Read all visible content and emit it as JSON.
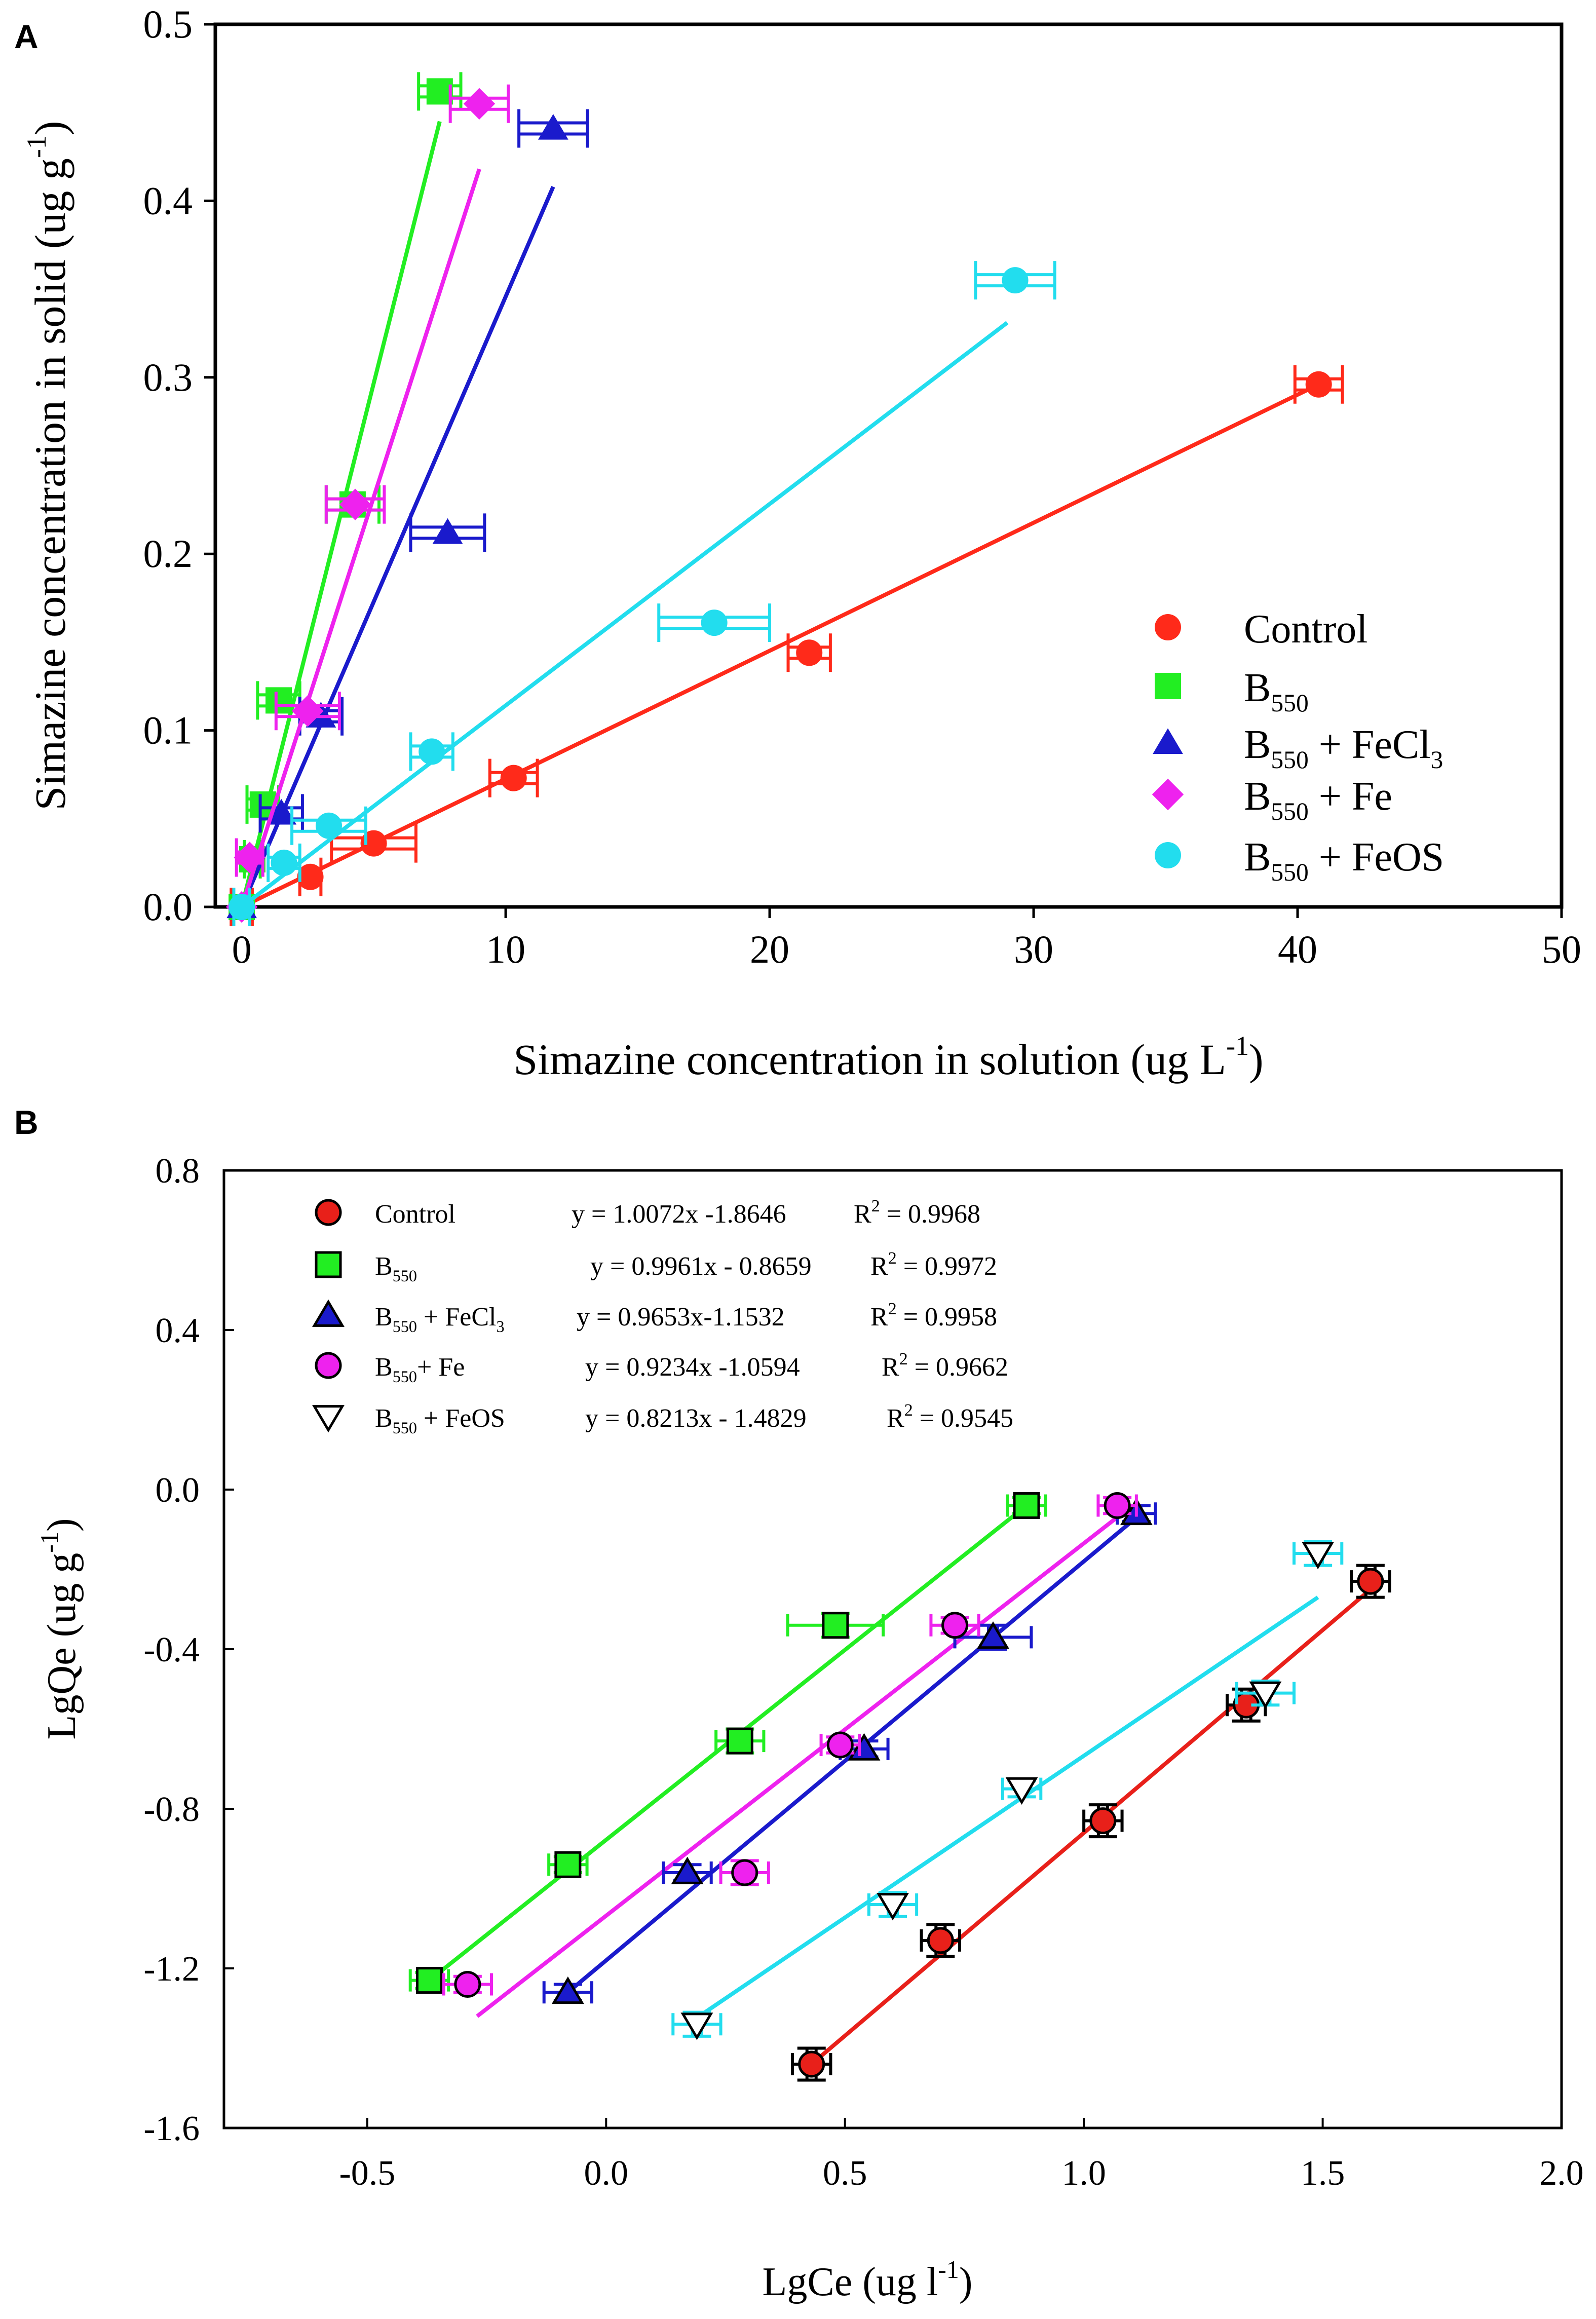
{
  "panels": [
    {
      "panel_label": "A",
      "chart_data": {
        "type": "scatter",
        "xlabel": "Simazine concentration in solution (ug L",
        "xlabel_sup": "-1",
        "xlabel_tail": ")",
        "ylabel": "Simazine concentration in solid (ug g",
        "ylabel_sup": "-1",
        "ylabel_tail": ")",
        "xlim": [
          -1,
          50
        ],
        "ylim": [
          0,
          0.5
        ],
        "xticks": [
          0,
          10,
          20,
          30,
          40,
          50
        ],
        "xtick_labels": [
          "0",
          "10",
          "20",
          "30",
          "40",
          "50"
        ],
        "yticks": [
          0,
          0.1,
          0.2,
          0.3,
          0.4,
          0.5
        ],
        "ytick_labels": [
          "0.0",
          "0.1",
          "0.2",
          "0.3",
          "0.4",
          "0.5"
        ],
        "series": [
          {
            "name": "Control",
            "sub": "",
            "tail": "",
            "sub2": "",
            "color": "#ff2a1a",
            "marker": "circle",
            "points": [
              [
                0,
                0
              ],
              [
                2.6,
                0.017
              ],
              [
                5,
                0.036
              ],
              [
                10.3,
                0.073
              ],
              [
                21.5,
                0.144
              ],
              [
                40.8,
                0.296
              ]
            ],
            "xerr": [
              0.4,
              0.4,
              1.6,
              0.9,
              0.8,
              0.9
            ],
            "line": [
              [
                0,
                0
              ],
              [
                40.8,
                0.296
              ]
            ]
          },
          {
            "name": "B",
            "sub": "550",
            "tail": "",
            "sub2": "",
            "color": "#22ee22",
            "marker": "square",
            "points": [
              [
                0,
                0
              ],
              [
                0.4,
                0.027
              ],
              [
                0.8,
                0.058
              ],
              [
                1.4,
                0.117
              ],
              [
                4.2,
                0.228
              ],
              [
                7.5,
                0.462
              ]
            ],
            "xerr": [
              0.3,
              0.3,
              0.6,
              0.8,
              1.0,
              0.8
            ],
            "line": [
              [
                0,
                0
              ],
              [
                7.5,
                0.445
              ]
            ]
          },
          {
            "name": "B",
            "sub": "550",
            "tail": " + FeCl",
            "sub2": "3",
            "color": "#1a1acc",
            "marker": "triangle",
            "points": [
              [
                0,
                0
              ],
              [
                1.5,
                0.053
              ],
              [
                3.0,
                0.108
              ],
              [
                7.8,
                0.212
              ],
              [
                11.8,
                0.441
              ]
            ],
            "xerr": [
              0.3,
              0.8,
              0.8,
              1.4,
              1.3
            ],
            "line": [
              [
                0,
                0
              ],
              [
                11.8,
                0.408
              ]
            ]
          },
          {
            "name": "B",
            "sub": "550",
            "tail": " + Fe",
            "sub2": "",
            "color": "#ee22ee",
            "marker": "diamond",
            "points": [
              [
                0,
                0
              ],
              [
                0.3,
                0.028
              ],
              [
                2.5,
                0.111
              ],
              [
                4.3,
                0.228
              ],
              [
                9.0,
                0.455
              ]
            ],
            "xerr": [
              0.3,
              0.5,
              1.2,
              1.1,
              1.1
            ],
            "line": [
              [
                0,
                0
              ],
              [
                9.0,
                0.418
              ]
            ]
          },
          {
            "name": "B",
            "sub": "550",
            "tail": " + FeOS",
            "sub2": "",
            "color": "#22ddee",
            "marker": "circle",
            "points": [
              [
                0,
                0
              ],
              [
                1.6,
                0.025
              ],
              [
                3.3,
                0.046
              ],
              [
                7.2,
                0.088
              ],
              [
                17.9,
                0.161
              ],
              [
                29.3,
                0.355
              ]
            ],
            "xerr": [
              0.3,
              0.6,
              1.4,
              0.8,
              2.1,
              1.5
            ],
            "line": [
              [
                0,
                0
              ],
              [
                29.0,
                0.331
              ]
            ]
          }
        ]
      },
      "legend": [
        {
          "text": "Control",
          "sub": "",
          "tail": "",
          "sub2": ""
        },
        {
          "text": "B",
          "sub": "550",
          "tail": "",
          "sub2": ""
        },
        {
          "text": "B",
          "sub": "550",
          "tail": " + FeCl",
          "sub2": "3"
        },
        {
          "text": "B",
          "sub": "550",
          "tail": " + Fe",
          "sub2": ""
        },
        {
          "text": "B",
          "sub": "550",
          "tail": " + FeOS",
          "sub2": ""
        }
      ]
    },
    {
      "panel_label": "B",
      "chart_data": {
        "type": "scatter",
        "xlabel": "LgCe (ug l",
        "xlabel_sup": "-1",
        "xlabel_tail": ")",
        "ylabel": "LgQe (ug g",
        "ylabel_sup": "-1",
        "ylabel_tail": ")",
        "xlim": [
          -0.8,
          2.0
        ],
        "ylim": [
          -1.6,
          0.8
        ],
        "xticks": [
          -0.5,
          0.0,
          0.5,
          1.0,
          1.5,
          2.0
        ],
        "xtick_labels": [
          "-0.5",
          "0.0",
          "0.5",
          "1.0",
          "1.5",
          "2.0"
        ],
        "yticks": [
          -1.6,
          -1.2,
          -0.8,
          -0.4,
          0.0,
          0.4,
          0.8
        ],
        "ytick_labels": [
          "-1.6",
          "-1.2",
          "-0.8",
          "-0.4",
          "0.0",
          "0.4",
          "0.8"
        ],
        "series": [
          {
            "name": "Control",
            "color": "#e8201a",
            "bar_color": "#000000",
            "marker": "circle",
            "points": [
              [
                0.43,
                -1.44
              ],
              [
                0.7,
                -1.13
              ],
              [
                1.04,
                -0.83
              ],
              [
                1.34,
                -0.54
              ],
              [
                1.6,
                -0.23
              ]
            ],
            "xerr": [
              0.04,
              0.04,
              0.04,
              0.04,
              0.04
            ],
            "yerr": [
              0.04,
              0.04,
              0.04,
              0.04,
              0.04
            ],
            "line": [
              [
                0.43,
                -1.44
              ],
              [
                1.62,
                -0.23
              ]
            ]
          },
          {
            "name": "B550",
            "color": "#22ee22",
            "bar_color": "#22ee22",
            "marker": "square",
            "points": [
              [
                -0.37,
                -1.23
              ],
              [
                -0.08,
                -0.94
              ],
              [
                0.28,
                -0.63
              ],
              [
                0.48,
                -0.34
              ],
              [
                0.88,
                -0.04
              ]
            ],
            "xerr": [
              0.04,
              0.04,
              0.05,
              0.1,
              0.04
            ],
            "yerr": [
              0.02,
              0.02,
              0.03,
              0.03,
              0.02
            ],
            "line": [
              [
                -0.37,
                -1.23
              ],
              [
                0.88,
                -0.04
              ]
            ]
          },
          {
            "name": "B550 + FeCl3",
            "color": "#1a1acc",
            "bar_color": "#1a1acc",
            "marker": "triangle",
            "points": [
              [
                -0.08,
                -1.26
              ],
              [
                0.17,
                -0.96
              ],
              [
                0.54,
                -0.65
              ],
              [
                0.81,
                -0.37
              ],
              [
                1.11,
                -0.06
              ]
            ],
            "xerr": [
              0.05,
              0.05,
              0.05,
              0.08,
              0.04
            ],
            "yerr": [
              0.02,
              0.02,
              0.02,
              0.03,
              0.02
            ],
            "line": [
              [
                -0.09,
                -1.27
              ],
              [
                1.12,
                -0.06
              ]
            ]
          },
          {
            "name": "B550 + Fe",
            "color": "#ee22ee",
            "bar_color": "#ee22ee",
            "marker": "circle",
            "points": [
              [
                -0.29,
                -1.24
              ],
              [
                0.29,
                -0.96
              ],
              [
                0.49,
                -0.64
              ],
              [
                0.73,
                -0.34
              ],
              [
                1.07,
                -0.04
              ]
            ],
            "xerr": [
              0.05,
              0.05,
              0.04,
              0.05,
              0.04
            ],
            "yerr": [
              0.02,
              0.03,
              0.02,
              0.02,
              0.02
            ],
            "line": [
              [
                -0.27,
                -1.32
              ],
              [
                1.08,
                -0.06
              ]
            ]
          },
          {
            "name": "B550 + FeOS",
            "color": "#ffffff",
            "bar_color": "#22ddee",
            "marker": "invtriangle",
            "points": [
              [
                0.19,
                -1.34
              ],
              [
                0.6,
                -1.04
              ],
              [
                0.87,
                -0.75
              ],
              [
                1.38,
                -0.51
              ],
              [
                1.49,
                -0.16
              ]
            ],
            "xerr": [
              0.05,
              0.05,
              0.04,
              0.06,
              0.05
            ],
            "yerr": [
              0.03,
              0.03,
              0.02,
              0.03,
              0.03
            ],
            "line": [
              [
                0.17,
                -1.34
              ],
              [
                1.49,
                -0.27
              ]
            ]
          }
        ]
      },
      "legend": [
        {
          "text": "Control",
          "sub": "",
          "tail": "",
          "sub2": "",
          "equation": "y = 1.0072x -1.8646",
          "r2": "R",
          "r2_sup": "2",
          "r2_val": " = 0.9968"
        },
        {
          "text": "B",
          "sub": "550",
          "tail": "",
          "sub2": "",
          "equation": "y = 0.9961x - 0.8659",
          "r2": "R",
          "r2_sup": "2",
          "r2_val": " = 0.9972"
        },
        {
          "text": "B",
          "sub": "550",
          "tail": " + FeCl",
          "sub2": "3",
          "equation": "y = 0.9653x-1.1532",
          "r2": "R",
          "r2_sup": "2",
          "r2_val": " = 0.9958"
        },
        {
          "text": "B",
          "sub": "550",
          "tail": "+ Fe",
          "sub2": "",
          "equation": "y = 0.9234x -1.0594",
          "r2": "R",
          "r2_sup": "2",
          "r2_val": " = 0.9662"
        },
        {
          "text": "B",
          "sub": "550",
          "tail": " + FeOS",
          "sub2": "",
          "equation": "y = 0.8213x - 1.4829",
          "r2": "R",
          "r2_sup": "2",
          "r2_val": " = 0.9545"
        }
      ]
    }
  ]
}
